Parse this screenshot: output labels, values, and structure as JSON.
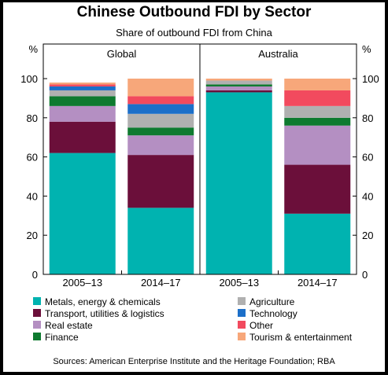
{
  "title": "Chinese Outbound FDI by Sector",
  "subtitle": "Share of outbound FDI from China",
  "source": "Sources:   American Enterprise Institute and the Heritage Foundation; RBA",
  "chart_data": {
    "type": "bar",
    "stacked": true,
    "unit_left": "%",
    "unit_right": "%",
    "ylim": [
      0,
      100
    ],
    "yticks": [
      0,
      20,
      40,
      60,
      80,
      100
    ],
    "grid": false,
    "legend_position": "bottom",
    "panels": [
      {
        "name": "Global",
        "categories": [
          "2005–13",
          "2014–17"
        ],
        "series": [
          {
            "name": "Metals, energy & chemicals",
            "color": "#00b3b0",
            "values": [
              62,
              34
            ]
          },
          {
            "name": "Transport, utilities & logistics",
            "color": "#6b0f3a",
            "values": [
              16,
              27
            ]
          },
          {
            "name": "Real estate",
            "color": "#b48fc2",
            "values": [
              8,
              10
            ]
          },
          {
            "name": "Finance",
            "color": "#0e7a2f",
            "values": [
              5,
              4
            ]
          },
          {
            "name": "Agriculture",
            "color": "#b0b0b0",
            "values": [
              3,
              7
            ]
          },
          {
            "name": "Technology",
            "color": "#1c6fc9",
            "values": [
              2,
              5
            ]
          },
          {
            "name": "Other",
            "color": "#f24a5e",
            "values": [
              1,
              4
            ]
          },
          {
            "name": "Tourism & entertainment",
            "color": "#f7a77a",
            "values": [
              1,
              9
            ]
          }
        ]
      },
      {
        "name": "Australia",
        "categories": [
          "2005–13",
          "2014–17"
        ],
        "series": [
          {
            "name": "Metals, energy & chemicals",
            "color": "#00b3b0",
            "values": [
              93,
              31
            ]
          },
          {
            "name": "Transport, utilities & logistics",
            "color": "#6b0f3a",
            "values": [
              1,
              25
            ]
          },
          {
            "name": "Real estate",
            "color": "#b48fc2",
            "values": [
              2,
              20
            ]
          },
          {
            "name": "Finance",
            "color": "#0e7a2f",
            "values": [
              1,
              4
            ]
          },
          {
            "name": "Agriculture",
            "color": "#b0b0b0",
            "values": [
              2,
              6
            ]
          },
          {
            "name": "Technology",
            "color": "#1c6fc9",
            "values": [
              0,
              0
            ]
          },
          {
            "name": "Other",
            "color": "#f24a5e",
            "values": [
              0,
              8
            ]
          },
          {
            "name": "Tourism & entertainment",
            "color": "#f7a77a",
            "values": [
              1,
              6
            ]
          }
        ]
      }
    ],
    "legend": [
      {
        "name": "Metals, energy & chemicals",
        "color": "#00b3b0"
      },
      {
        "name": "Transport, utilities & logistics",
        "color": "#6b0f3a"
      },
      {
        "name": "Real estate",
        "color": "#b48fc2"
      },
      {
        "name": "Finance",
        "color": "#0e7a2f"
      },
      {
        "name": "Agriculture",
        "color": "#b0b0b0"
      },
      {
        "name": "Technology",
        "color": "#1c6fc9"
      },
      {
        "name": "Other",
        "color": "#f24a5e"
      },
      {
        "name": "Tourism & entertainment",
        "color": "#f7a77a"
      }
    ]
  }
}
